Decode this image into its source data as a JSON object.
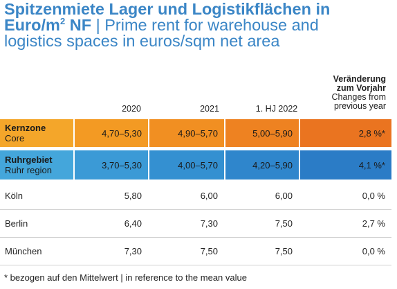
{
  "title": {
    "bold_line1": "Spitzenmiete Lager und Logistikflächen in",
    "bold_line2_pre": "Euro/m",
    "bold_line2_sup": "2",
    "bold_line2_post": " NF",
    "english_1": " | Prime rent for warehouse and",
    "english_2": "logistics spaces in euros/sqm net area"
  },
  "columns": {
    "c2020": "2020",
    "c2021": "2021",
    "c2022": "1. HJ 2022",
    "change_de_1": "Veränderung",
    "change_de_2": "zum Vorjahr",
    "change_en_1": "Changes from",
    "change_en_2": "previous year"
  },
  "rows": [
    {
      "label_de": "Kernzone",
      "label_en": "Core",
      "v2020": "4,70–5,30",
      "v2021": "4,90–5,70",
      "v2022": "5,00–5,90",
      "change": "2,8 %*"
    },
    {
      "label_de": "Ruhrgebiet",
      "label_en": "Ruhr region",
      "v2020": "3,70–5,30",
      "v2021": "4,00–5,70",
      "v2022": "4,20–5,90",
      "change": "4,1 %*"
    },
    {
      "label": "Köln",
      "v2020": "5,80",
      "v2021": "6,00",
      "v2022": "6,00",
      "change": "0,0 %"
    },
    {
      "label": "Berlin",
      "v2020": "6,40",
      "v2021": "7,30",
      "v2022": "7,50",
      "change": "2,7 %"
    },
    {
      "label": "München",
      "v2020": "7,30",
      "v2021": "7,50",
      "v2022": "7,50",
      "change": "0,0 %"
    }
  ],
  "footnote": "* bezogen auf den Mittelwert | in reference to the mean value",
  "colors": {
    "title": "#3b86c6",
    "core_band": "#f18f22",
    "ruhr_band": "#3490d1"
  }
}
